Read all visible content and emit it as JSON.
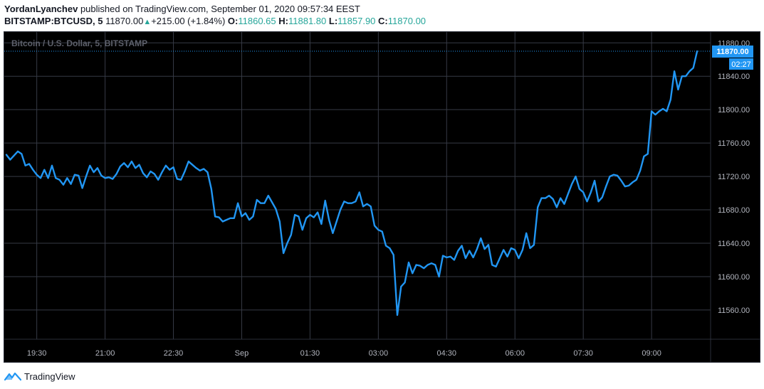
{
  "header": {
    "author": "YordanLyanchev",
    "published_text": "published on TradingView.com, September 01, 2020 09:57:34 EEST",
    "symbol": "BITSTAMP:BTCUSD, 5",
    "last": "11870.00",
    "change_arrow": "▲",
    "change": "+215.00 (+1.84%)",
    "o_label": "O:",
    "o_val": "11860.65",
    "h_label": "H:",
    "h_val": "11881.80",
    "l_label": "L:",
    "l_val": "11857.90",
    "c_label": "C:",
    "c_val": "11870.00"
  },
  "footer": {
    "brand": "TradingView",
    "logo_icon": "tradingview-logo-icon"
  },
  "chart_data": {
    "type": "line",
    "title": "Bitcoin / U.S. Dollar, 5, BITSTAMP",
    "ylim": [
      11525,
      11893
    ],
    "y_ticks": [
      11560,
      11600,
      11640,
      11680,
      11720,
      11760,
      11800,
      11840,
      11880
    ],
    "y_tick_labels": [
      "11560.00",
      "11600.00",
      "11640.00",
      "11680.00",
      "11720.00",
      "11760.00",
      "11800.00",
      "11840.00",
      "11880.00"
    ],
    "x_ticks": [
      {
        "label": "19:30",
        "i": 8
      },
      {
        "label": "21:00",
        "i": 26
      },
      {
        "label": "22:30",
        "i": 44
      },
      {
        "label": "Sep",
        "i": 62
      },
      {
        "label": "01:30",
        "i": 80
      },
      {
        "label": "03:00",
        "i": 98
      },
      {
        "label": "04:30",
        "i": 116
      },
      {
        "label": "06:00",
        "i": 134
      },
      {
        "label": "07:30",
        "i": 152
      },
      {
        "label": "09:00",
        "i": 170
      }
    ],
    "last_price_label": "11870.00",
    "countdown": "02:27",
    "colors": {
      "line": "#2196f3",
      "background": "#000000",
      "grid": "#363a45",
      "axis_text": "#b2b5be",
      "price_tag": "#2196f3"
    },
    "grid": true,
    "series": [
      {
        "values": [
          11746,
          11740,
          11745,
          11750,
          11747,
          11733,
          11735,
          11728,
          11722,
          11718,
          11728,
          11718,
          11733,
          11718,
          11716,
          11710,
          11718,
          11711,
          11722,
          11721,
          11706,
          11720,
          11733,
          11725,
          11730,
          11721,
          11718,
          11719,
          11717,
          11723,
          11732,
          11736,
          11731,
          11738,
          11730,
          11734,
          11724,
          11719,
          11726,
          11723,
          11716,
          11725,
          11733,
          11728,
          11731,
          11717,
          11716,
          11726,
          11738,
          11734,
          11730,
          11727,
          11729,
          11725,
          11705,
          11672,
          11671,
          11666,
          11668,
          11670,
          11670,
          11688,
          11672,
          11676,
          11668,
          11672,
          11692,
          11688,
          11688,
          11697,
          11689,
          11681,
          11666,
          11628,
          11640,
          11650,
          11674,
          11672,
          11656,
          11670,
          11674,
          11671,
          11677,
          11663,
          11691,
          11668,
          11652,
          11666,
          11680,
          11690,
          11688,
          11688,
          11690,
          11701,
          11684,
          11687,
          11684,
          11661,
          11656,
          11654,
          11637,
          11634,
          11626,
          11554,
          11588,
          11593,
          11617,
          11604,
          11614,
          11613,
          11610,
          11614,
          11616,
          11614,
          11600,
          11625,
          11623,
          11624,
          11620,
          11631,
          11637,
          11622,
          11631,
          11623,
          11633,
          11646,
          11633,
          11638,
          11614,
          11612,
          11622,
          11632,
          11624,
          11634,
          11632,
          11622,
          11632,
          11652,
          11634,
          11638,
          11683,
          11694,
          11694,
          11697,
          11693,
          11683,
          11694,
          11687,
          11699,
          11711,
          11720,
          11705,
          11701,
          11690,
          11701,
          11715,
          11690,
          11695,
          11708,
          11720,
          11722,
          11721,
          11715,
          11708,
          11709,
          11713,
          11716,
          11727,
          11744,
          11747,
          11798,
          11794,
          11798,
          11801,
          11798,
          11812,
          11846,
          11824,
          11840,
          11840,
          11846,
          11850,
          11870
        ]
      }
    ]
  }
}
